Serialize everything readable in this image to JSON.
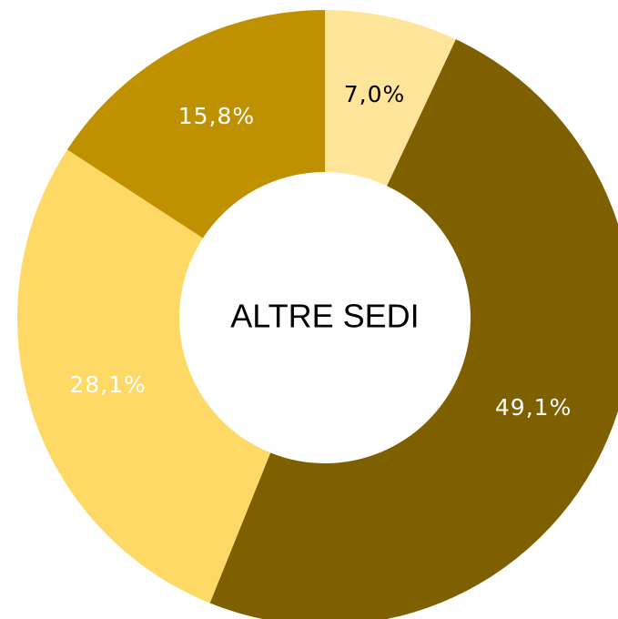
{
  "chart_data": {
    "type": "donut",
    "title": "ALTRE SEDI",
    "values": [
      7.0,
      49.1,
      28.1,
      15.8
    ],
    "value_labels": [
      "7,0%",
      "49,1%",
      "28,1%",
      "15,8%"
    ],
    "colors": [
      "#ffe59a",
      "#7f6000",
      "#ffd966",
      "#bf9000"
    ],
    "label_colors": [
      "#000000",
      "#ffffff",
      "#ffffff",
      "#ffffff"
    ]
  }
}
